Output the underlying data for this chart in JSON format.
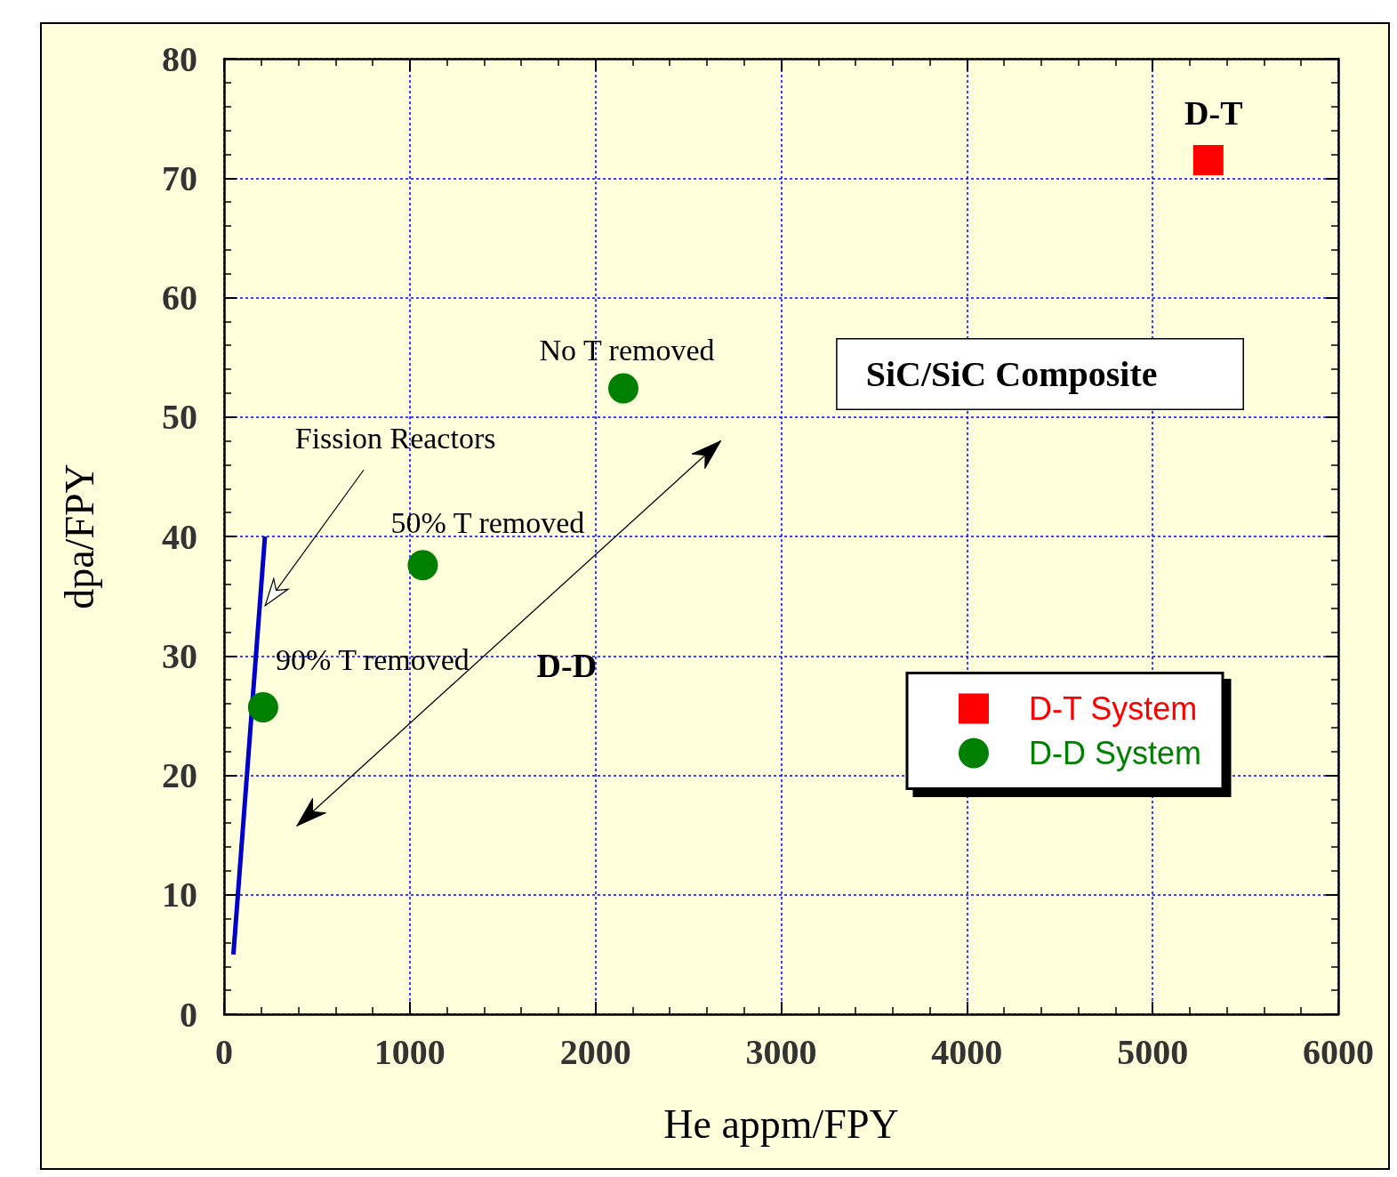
{
  "chart_data": {
    "type": "scatter",
    "xlabel": "He appm/FPY",
    "ylabel": "dpa/FPY",
    "xlim": [
      0,
      6000
    ],
    "xticks": [
      0,
      1000,
      2000,
      3000,
      4000,
      5000,
      6000
    ],
    "ylim": [
      0,
      80
    ],
    "yticks": [
      0,
      10,
      20,
      30,
      40,
      50,
      60,
      70,
      80
    ],
    "grid": true,
    "legend": "right",
    "series": [
      {
        "type": "line",
        "color": "#0000cc",
        "x": [
          50,
          220
        ],
        "values": [
          5,
          40
        ],
        "marker": "none",
        "line_style": "solid"
      },
      {
        "name": "D-T System",
        "color": "#ff0000",
        "marker": "square",
        "x": [
          5300
        ],
        "values": [
          71.5
        ]
      },
      {
        "name": "D-D System",
        "color": "#008000",
        "marker": "circle",
        "x": [
          210,
          1070,
          2150
        ],
        "values": [
          25.7,
          37.6,
          52.4
        ]
      }
    ],
    "annotations": [
      {
        "text": "D-T",
        "x": 5300,
        "y": 71.5
      },
      {
        "text": "No T removed",
        "x": 2150,
        "y": 52.4
      },
      {
        "text": "50% T removed",
        "x": 1070,
        "y": 37.6
      },
      {
        "text": "90% T removed",
        "x": 210,
        "y": 25.7
      },
      "Fission Reactors",
      "D-D",
      "SiC/SiC Composite"
    ]
  }
}
